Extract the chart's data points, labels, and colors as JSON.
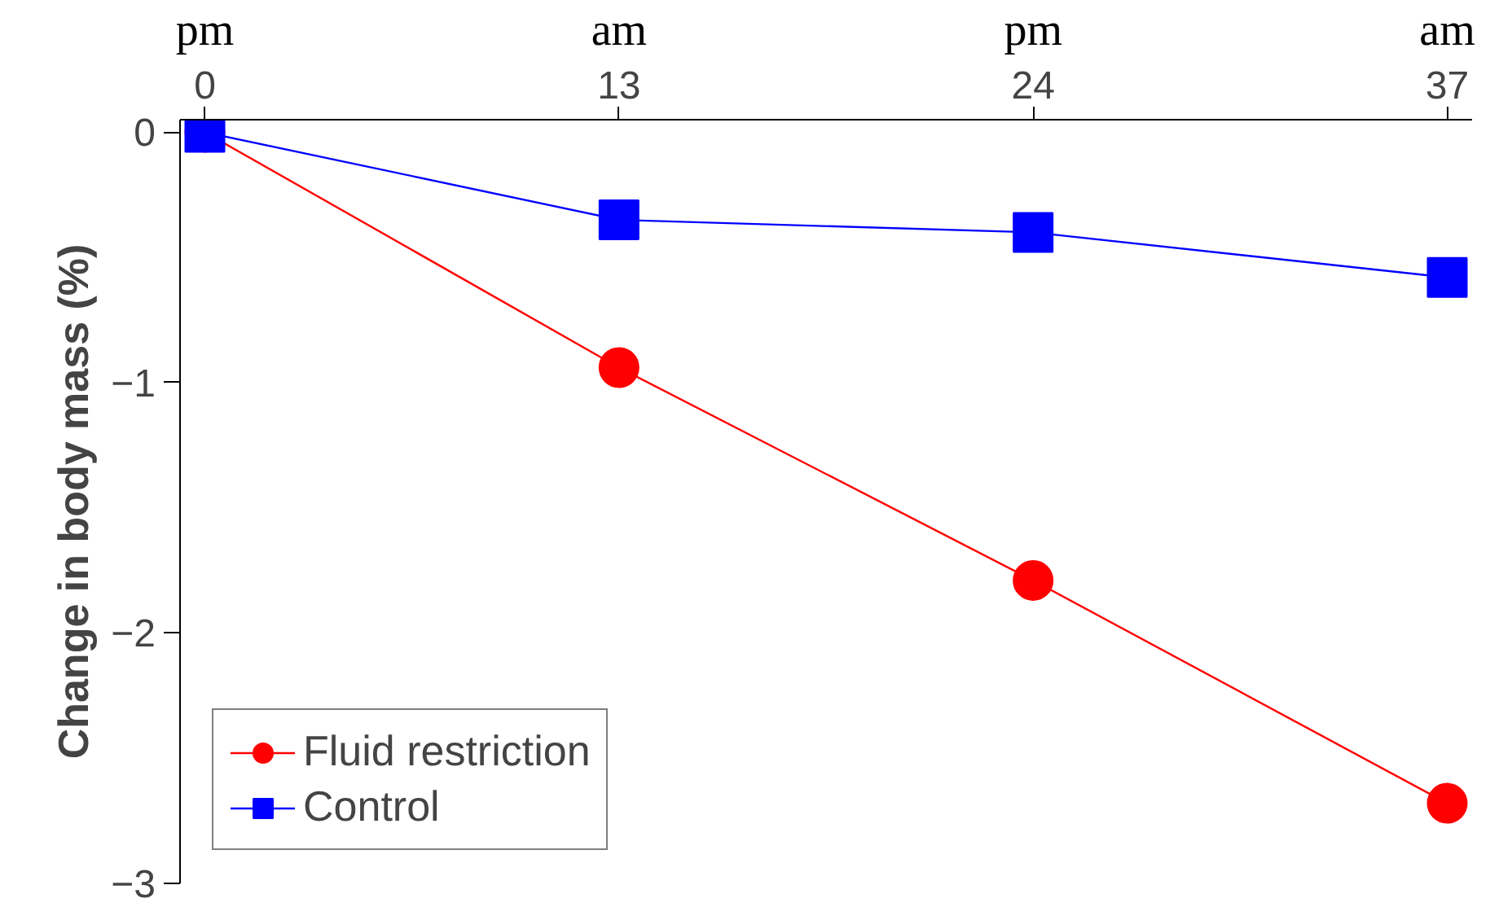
{
  "chart_data": {
    "type": "line",
    "ylabel": "Change in body mass (%)",
    "categories": [
      "0",
      "13",
      "24",
      "37"
    ],
    "annotations": [
      "pm",
      "am",
      "pm",
      "am"
    ],
    "series": [
      {
        "name": "Fluid restriction",
        "color": "#ff0000",
        "marker": "circle",
        "values": [
          0,
          -0.94,
          -1.79,
          -2.68
        ]
      },
      {
        "name": "Control",
        "color": "#0000ff",
        "marker": "square",
        "values": [
          0,
          -0.35,
          -0.4,
          -0.58
        ]
      }
    ],
    "ylim": [
      -3,
      0.05
    ],
    "yticks": [
      0,
      -1,
      -2,
      -3
    ],
    "grid": false,
    "legend": "bottom left",
    "line_style": "solid"
  }
}
